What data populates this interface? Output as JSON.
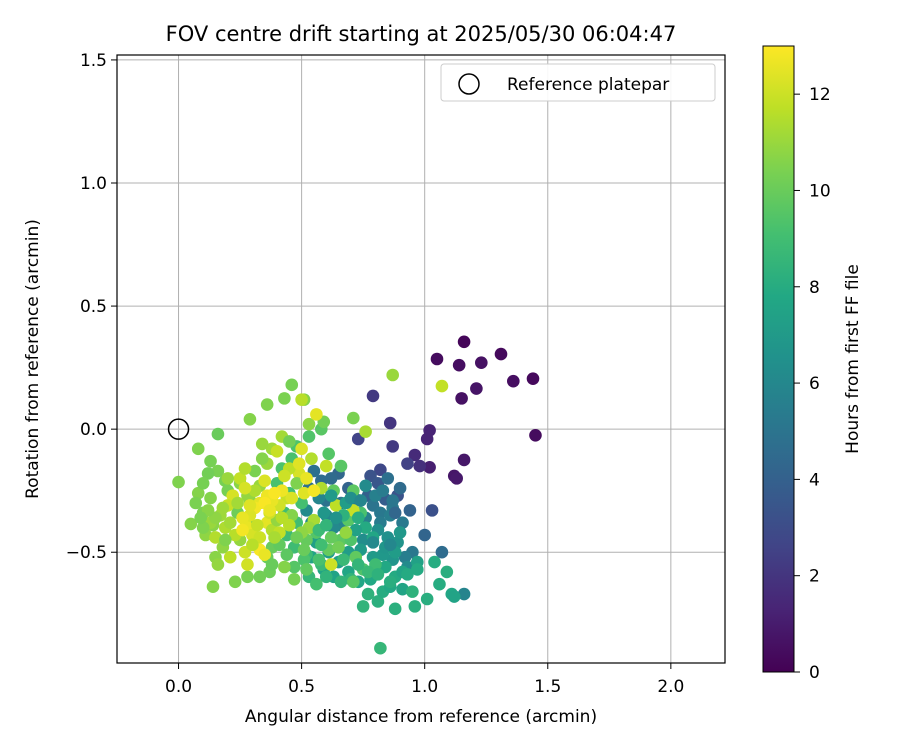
{
  "chart_data": {
    "type": "scatter",
    "title": "FOV centre drift starting at 2025/05/30 06:04:47",
    "xlabel": "Angular distance from reference (arcmin)",
    "ylabel": "Rotation from reference (arcmin)",
    "xlim": [
      -0.25,
      2.22
    ],
    "ylim": [
      -0.95,
      1.52
    ],
    "xticks": [
      0.0,
      0.5,
      1.0,
      1.5,
      2.0
    ],
    "xtick_labels": [
      "0.0",
      "0.5",
      "1.0",
      "1.5",
      "2.0"
    ],
    "yticks": [
      -0.5,
      0.0,
      0.5,
      1.0,
      1.5
    ],
    "ytick_labels": [
      "−0.5",
      "0.0",
      "0.5",
      "1.0",
      "1.5"
    ],
    "grid": true,
    "legend": {
      "placement": "top-right",
      "entries": [
        {
          "label": "Reference platepar",
          "marker": "open-circle"
        }
      ]
    },
    "reference_point": {
      "x": 0.0,
      "y": 0.0
    },
    "colorbar": {
      "label": "Hours from first FF file",
      "range": [
        0,
        13
      ],
      "ticks": [
        0,
        2,
        4,
        6,
        8,
        10,
        12
      ],
      "tick_labels": [
        "0",
        "2",
        "4",
        "6",
        "8",
        "10",
        "12"
      ],
      "colormap": "viridis"
    },
    "points": [
      [
        1.16,
        0.355,
        0.2
      ],
      [
        1.31,
        0.305,
        0.3
      ],
      [
        1.05,
        0.285,
        0.4
      ],
      [
        1.23,
        0.27,
        0.6
      ],
      [
        1.14,
        0.26,
        0.5
      ],
      [
        1.44,
        0.205,
        0.3
      ],
      [
        1.36,
        0.195,
        0.5
      ],
      [
        1.21,
        0.165,
        0.7
      ],
      [
        1.15,
        0.125,
        0.6
      ],
      [
        1.45,
        -0.025,
        0.4
      ],
      [
        1.16,
        -0.125,
        0.8
      ],
      [
        1.12,
        -0.19,
        0.8
      ],
      [
        1.13,
        -0.2,
        0.9
      ],
      [
        1.02,
        -0.155,
        1.1
      ],
      [
        1.01,
        -0.04,
        1.3
      ],
      [
        1.02,
        -0.005,
        1.3
      ],
      [
        0.96,
        -0.105,
        1.6
      ],
      [
        0.98,
        -0.15,
        1.8
      ],
      [
        0.86,
        0.025,
        2.0
      ],
      [
        0.79,
        0.135,
        2.2
      ],
      [
        0.87,
        -0.07,
        2.2
      ],
      [
        0.93,
        -0.14,
        2.5
      ],
      [
        0.82,
        -0.165,
        2.8
      ],
      [
        0.73,
        -0.04,
        2.6
      ],
      [
        1.03,
        -0.33,
        3.2
      ],
      [
        0.89,
        -0.27,
        3.3
      ],
      [
        0.78,
        -0.19,
        3.3
      ],
      [
        0.81,
        -0.22,
        3.5
      ],
      [
        0.84,
        -0.285,
        3.8
      ],
      [
        0.77,
        -0.27,
        4.0
      ],
      [
        0.69,
        -0.24,
        4.1
      ],
      [
        0.65,
        -0.18,
        4.3
      ],
      [
        0.62,
        -0.2,
        4.5
      ],
      [
        0.58,
        -0.21,
        4.6
      ],
      [
        0.55,
        -0.17,
        4.8
      ],
      [
        0.53,
        -0.24,
        4.8
      ],
      [
        0.6,
        -0.29,
        4.9
      ],
      [
        0.66,
        -0.3,
        5.1
      ],
      [
        0.72,
        -0.285,
        5.0
      ],
      [
        0.79,
        -0.31,
        5.0
      ],
      [
        0.82,
        -0.34,
        5.2
      ],
      [
        0.87,
        -0.32,
        5.3
      ],
      [
        0.91,
        -0.38,
        5.3
      ],
      [
        0.86,
        -0.35,
        5.5
      ],
      [
        0.82,
        -0.38,
        5.4
      ],
      [
        0.76,
        -0.36,
        5.6
      ],
      [
        0.71,
        -0.35,
        5.7
      ],
      [
        0.66,
        -0.39,
        5.8
      ],
      [
        0.6,
        -0.35,
        5.9
      ],
      [
        0.57,
        -0.28,
        5.9
      ],
      [
        0.54,
        -0.38,
        6.0
      ],
      [
        0.52,
        -0.33,
        6.2
      ],
      [
        0.63,
        -0.4,
        6.1
      ],
      [
        0.69,
        -0.43,
        6.0
      ],
      [
        0.75,
        -0.45,
        6.3
      ],
      [
        0.81,
        -0.41,
        6.4
      ],
      [
        0.85,
        -0.44,
        6.5
      ],
      [
        0.89,
        -0.46,
        6.6
      ],
      [
        1.0,
        -0.43,
        4.2
      ],
      [
        1.07,
        -0.5,
        4.6
      ],
      [
        0.95,
        -0.5,
        5.2
      ],
      [
        0.92,
        -0.52,
        5.5
      ],
      [
        0.93,
        -0.56,
        6.2
      ],
      [
        0.87,
        -0.53,
        6.7
      ],
      [
        0.83,
        -0.51,
        6.9
      ],
      [
        0.79,
        -0.52,
        7.0
      ],
      [
        0.74,
        -0.49,
        7.0
      ],
      [
        0.69,
        -0.5,
        7.2
      ],
      [
        0.65,
        -0.54,
        7.3
      ],
      [
        0.61,
        -0.5,
        7.2
      ],
      [
        0.56,
        -0.46,
        7.3
      ],
      [
        0.54,
        -0.52,
        7.5
      ],
      [
        0.59,
        -0.57,
        7.6
      ],
      [
        0.63,
        -0.6,
        7.5
      ],
      [
        0.69,
        -0.58,
        7.7
      ],
      [
        0.73,
        -0.62,
        7.7
      ],
      [
        0.78,
        -0.61,
        7.8
      ],
      [
        0.84,
        -0.56,
        7.8
      ],
      [
        0.88,
        -0.6,
        7.9
      ],
      [
        0.91,
        -0.58,
        7.6
      ],
      [
        0.97,
        -0.54,
        7.4
      ],
      [
        0.97,
        -0.57,
        7.9
      ],
      [
        1.04,
        -0.54,
        8.0
      ],
      [
        1.09,
        -0.58,
        8.1
      ],
      [
        1.06,
        -0.63,
        8.0
      ],
      [
        1.11,
        -0.67,
        7.7
      ],
      [
        1.16,
        -0.67,
        5.8
      ],
      [
        1.12,
        -0.68,
        7.5
      ],
      [
        1.01,
        -0.69,
        8.1
      ],
      [
        0.96,
        -0.72,
        8.2
      ],
      [
        0.88,
        -0.73,
        8.2
      ],
      [
        0.81,
        -0.7,
        8.2
      ],
      [
        0.77,
        -0.67,
        8.3
      ],
      [
        0.75,
        -0.72,
        8.4
      ],
      [
        0.83,
        -0.66,
        8.0
      ],
      [
        0.86,
        -0.64,
        7.8
      ],
      [
        0.91,
        -0.65,
        7.6
      ],
      [
        0.7,
        -0.61,
        8.4
      ],
      [
        0.66,
        -0.62,
        8.5
      ],
      [
        0.6,
        -0.6,
        8.4
      ],
      [
        0.53,
        -0.6,
        8.6
      ],
      [
        0.82,
        -0.89,
        8.6
      ],
      [
        0.58,
        -0.55,
        8.7
      ],
      [
        0.52,
        -0.51,
        8.8
      ],
      [
        0.47,
        -0.48,
        8.9
      ],
      [
        0.44,
        -0.43,
        8.9
      ],
      [
        0.48,
        -0.38,
        9.0
      ],
      [
        0.43,
        -0.34,
        9.0
      ],
      [
        0.5,
        -0.3,
        9.1
      ],
      [
        0.45,
        -0.26,
        9.1
      ],
      [
        0.4,
        -0.22,
        9.2
      ],
      [
        0.42,
        -0.16,
        9.3
      ],
      [
        0.46,
        -0.12,
        9.2
      ],
      [
        0.48,
        -0.07,
        9.3
      ],
      [
        0.53,
        -0.03,
        9.4
      ],
      [
        0.58,
        0.0,
        9.6
      ],
      [
        0.61,
        -0.1,
        9.5
      ],
      [
        0.66,
        -0.15,
        9.6
      ],
      [
        0.71,
        -0.25,
        9.7
      ],
      [
        0.63,
        -0.25,
        9.8
      ],
      [
        0.69,
        -0.37,
        9.6
      ],
      [
        0.66,
        -0.45,
        9.7
      ],
      [
        0.72,
        -0.52,
        9.8
      ],
      [
        0.71,
        -0.62,
        9.6
      ],
      [
        0.75,
        -0.57,
        9.4
      ],
      [
        0.74,
        -0.34,
        9.2
      ],
      [
        0.7,
        -0.45,
        9.4
      ],
      [
        0.56,
        -0.42,
        9.5
      ],
      [
        0.52,
        -0.45,
        9.9
      ],
      [
        0.61,
        -0.49,
        9.9
      ],
      [
        0.38,
        -0.48,
        10.0
      ],
      [
        0.37,
        -0.58,
        10.1
      ],
      [
        0.36,
        -0.52,
        10.0
      ],
      [
        0.32,
        -0.44,
        10.1
      ],
      [
        0.28,
        -0.38,
        10.2
      ],
      [
        0.24,
        -0.34,
        10.1
      ],
      [
        0.22,
        -0.3,
        10.2
      ],
      [
        0.2,
        -0.25,
        10.3
      ],
      [
        0.19,
        -0.21,
        10.3
      ],
      [
        0.16,
        -0.17,
        10.4
      ],
      [
        0.13,
        -0.13,
        10.3
      ],
      [
        0.08,
        -0.08,
        10.5
      ],
      [
        0.16,
        -0.02,
        10.0
      ],
      [
        0.0,
        -0.215,
        10.5
      ],
      [
        0.05,
        -0.385,
        10.6
      ],
      [
        0.08,
        -0.26,
        10.6
      ],
      [
        0.1,
        -0.34,
        10.4
      ],
      [
        0.13,
        -0.28,
        10.6
      ],
      [
        0.14,
        -0.39,
        10.7
      ],
      [
        0.11,
        -0.43,
        10.8
      ],
      [
        0.15,
        -0.52,
        10.7
      ],
      [
        0.16,
        -0.55,
        10.9
      ],
      [
        0.14,
        -0.64,
        10.6
      ],
      [
        0.18,
        -0.48,
        10.8
      ],
      [
        0.23,
        -0.62,
        10.5
      ],
      [
        0.28,
        -0.6,
        10.3
      ],
      [
        0.25,
        -0.45,
        10.9
      ],
      [
        0.29,
        -0.29,
        10.8
      ],
      [
        0.25,
        -0.22,
        10.7
      ],
      [
        0.28,
        -0.27,
        10.9
      ],
      [
        0.33,
        -0.23,
        11.0
      ],
      [
        0.36,
        -0.14,
        11.0
      ],
      [
        0.38,
        -0.08,
        11.1
      ],
      [
        0.34,
        -0.06,
        11.0
      ],
      [
        0.29,
        0.04,
        10.6
      ],
      [
        0.36,
        0.1,
        10.5
      ],
      [
        0.43,
        0.125,
        10.4
      ],
      [
        0.46,
        0.18,
        10.3
      ],
      [
        0.51,
        0.12,
        10.6
      ],
      [
        0.53,
        0.02,
        10.8
      ],
      [
        0.59,
        0.03,
        10.2
      ],
      [
        0.71,
        0.045,
        10.4
      ],
      [
        0.76,
        -0.01,
        11.3
      ],
      [
        0.56,
        0.06,
        12.5
      ],
      [
        0.87,
        0.22,
        11.0
      ],
      [
        1.07,
        0.175,
        11.8
      ],
      [
        0.5,
        0.12,
        11.6
      ],
      [
        0.42,
        -0.03,
        11.2
      ],
      [
        0.5,
        -0.08,
        12.3
      ],
      [
        0.54,
        -0.12,
        11.5
      ],
      [
        0.6,
        -0.15,
        11.8
      ],
      [
        0.58,
        -0.24,
        11.4
      ],
      [
        0.51,
        -0.26,
        12.4
      ],
      [
        0.49,
        -0.18,
        12.2
      ],
      [
        0.45,
        -0.16,
        11.7
      ],
      [
        0.43,
        -0.19,
        12.0
      ],
      [
        0.44,
        -0.28,
        11.9
      ],
      [
        0.41,
        -0.31,
        12.1
      ],
      [
        0.38,
        -0.29,
        12.6
      ],
      [
        0.36,
        -0.27,
        12.7
      ],
      [
        0.33,
        -0.3,
        12.5
      ],
      [
        0.31,
        -0.32,
        12.8
      ],
      [
        0.29,
        -0.35,
        12.3
      ],
      [
        0.27,
        -0.37,
        12.4
      ],
      [
        0.28,
        -0.4,
        12.6
      ],
      [
        0.3,
        -0.43,
        12.2
      ],
      [
        0.33,
        -0.44,
        12.0
      ],
      [
        0.36,
        -0.38,
        12.5
      ],
      [
        0.38,
        -0.41,
        11.5
      ],
      [
        0.41,
        -0.42,
        11.8
      ],
      [
        0.33,
        -0.49,
        12.9
      ],
      [
        0.35,
        -0.51,
        12.6
      ],
      [
        0.23,
        -0.43,
        11.6
      ],
      [
        0.19,
        -0.4,
        11.4
      ],
      [
        0.21,
        -0.38,
        11.2
      ],
      [
        0.17,
        -0.35,
        11.1
      ],
      [
        0.13,
        -0.38,
        11.0
      ],
      [
        0.15,
        -0.44,
        11.5
      ],
      [
        0.21,
        -0.52,
        11.7
      ],
      [
        0.27,
        -0.5,
        12.0
      ],
      [
        0.28,
        -0.55,
        12.1
      ],
      [
        0.26,
        -0.36,
        12.6
      ],
      [
        0.22,
        -0.27,
        12.2
      ],
      [
        0.25,
        -0.2,
        11.8
      ],
      [
        0.2,
        -0.31,
        11.9
      ],
      [
        0.26,
        -0.41,
        12.8
      ],
      [
        0.62,
        -0.55,
        12.0
      ],
      [
        0.71,
        -0.33,
        11.9
      ],
      [
        0.64,
        -0.31,
        11.7
      ],
      [
        0.55,
        -0.37,
        11.3
      ],
      [
        0.53,
        -0.4,
        11.0
      ],
      [
        0.5,
        -0.42,
        10.8
      ],
      [
        0.46,
        -0.35,
        10.6
      ],
      [
        0.48,
        -0.22,
        10.5
      ],
      [
        0.45,
        -0.05,
        10.2
      ],
      [
        0.31,
        -0.17,
        10.4
      ],
      [
        0.34,
        -0.12,
        10.6
      ],
      [
        0.12,
        -0.18,
        10.2
      ],
      [
        0.1,
        -0.22,
        10.3
      ],
      [
        0.07,
        -0.3,
        10.4
      ],
      [
        0.19,
        -0.45,
        10.5
      ],
      [
        0.33,
        -0.6,
        10.2
      ],
      [
        0.38,
        -0.55,
        10.0
      ],
      [
        0.41,
        -0.47,
        9.8
      ],
      [
        0.44,
        -0.51,
        9.7
      ],
      [
        0.47,
        -0.56,
        9.5
      ],
      [
        0.51,
        -0.53,
        9.3
      ],
      [
        0.58,
        -0.47,
        9.0
      ],
      [
        0.57,
        -0.41,
        8.8
      ],
      [
        0.6,
        -0.39,
        8.5
      ],
      [
        0.67,
        -0.35,
        8.3
      ],
      [
        0.73,
        -0.36,
        8.1
      ],
      [
        0.76,
        -0.4,
        7.9
      ],
      [
        0.79,
        -0.44,
        7.7
      ],
      [
        0.72,
        -0.41,
        7.4
      ],
      [
        0.68,
        -0.3,
        7.2
      ],
      [
        0.62,
        -0.27,
        7.0
      ],
      [
        0.59,
        -0.34,
        6.8
      ],
      [
        0.64,
        -0.36,
        6.6
      ],
      [
        0.7,
        -0.28,
        6.4
      ],
      [
        0.76,
        -0.23,
        6.2
      ],
      [
        0.74,
        -0.29,
        5.9
      ],
      [
        0.8,
        -0.27,
        5.6
      ],
      [
        0.83,
        -0.25,
        5.4
      ],
      [
        0.87,
        -0.29,
        5.1
      ],
      [
        0.85,
        -0.2,
        4.8
      ],
      [
        0.9,
        -0.24,
        4.5
      ],
      [
        0.88,
        -0.34,
        4.3
      ],
      [
        0.94,
        -0.33,
        4.1
      ],
      [
        0.79,
        -0.46,
        6.1
      ],
      [
        0.84,
        -0.48,
        6.8
      ],
      [
        0.88,
        -0.5,
        7.1
      ],
      [
        0.9,
        -0.42,
        6.9
      ],
      [
        0.86,
        -0.47,
        6.0
      ],
      [
        0.8,
        -0.55,
        8.9
      ],
      [
        0.77,
        -0.58,
        8.7
      ],
      [
        0.56,
        -0.63,
        9.1
      ],
      [
        0.52,
        -0.57,
        9.8
      ],
      [
        0.48,
        -0.44,
        10.1
      ],
      [
        0.4,
        -0.37,
        10.9
      ],
      [
        0.39,
        -0.44,
        11.3
      ],
      [
        0.42,
        -0.36,
        11.6
      ],
      [
        0.37,
        -0.34,
        12.1
      ],
      [
        0.35,
        -0.3,
        12.9
      ],
      [
        0.31,
        -0.25,
        11.4
      ],
      [
        0.24,
        -0.3,
        11.2
      ],
      [
        0.18,
        -0.32,
        11.1
      ],
      [
        0.15,
        -0.36,
        10.8
      ],
      [
        0.12,
        -0.33,
        10.7
      ],
      [
        0.1,
        -0.4,
        10.5
      ],
      [
        0.09,
        -0.36,
        10.4
      ],
      [
        0.2,
        -0.2,
        11.0
      ],
      [
        0.27,
        -0.16,
        11.5
      ],
      [
        0.4,
        -0.09,
        11.9
      ],
      [
        0.49,
        -0.14,
        12.4
      ],
      [
        0.52,
        -0.2,
        12.6
      ],
      [
        0.55,
        -0.25,
        12.8
      ],
      [
        0.46,
        -0.28,
        12.3
      ],
      [
        0.42,
        -0.25,
        12.7
      ],
      [
        0.39,
        -0.26,
        12.9
      ],
      [
        0.68,
        -0.42,
        10.9
      ],
      [
        0.65,
        -0.48,
        10.2
      ],
      [
        0.62,
        -0.44,
        9.9
      ],
      [
        0.47,
        -0.61,
        10.3
      ],
      [
        0.43,
        -0.56,
        10.6
      ],
      [
        0.3,
        -0.47,
        11.6
      ],
      [
        0.32,
        -0.39,
        11.9
      ],
      [
        0.29,
        -0.31,
        12.4
      ],
      [
        0.27,
        -0.24,
        12.2
      ],
      [
        0.35,
        -0.21,
        12.3
      ],
      [
        0.37,
        -0.33,
        12.6
      ],
      [
        0.45,
        -0.39,
        11.6
      ],
      [
        0.51,
        -0.49,
        10.0
      ],
      [
        0.57,
        -0.53,
        9.2
      ],
      [
        0.67,
        -0.53,
        8.7
      ],
      [
        0.73,
        -0.55,
        8.5
      ],
      [
        0.81,
        -0.59,
        8.3
      ],
      [
        0.86,
        -0.62,
        8.1
      ],
      [
        0.93,
        -0.59,
        7.9
      ],
      [
        0.95,
        -0.66,
        8.3
      ]
    ]
  }
}
